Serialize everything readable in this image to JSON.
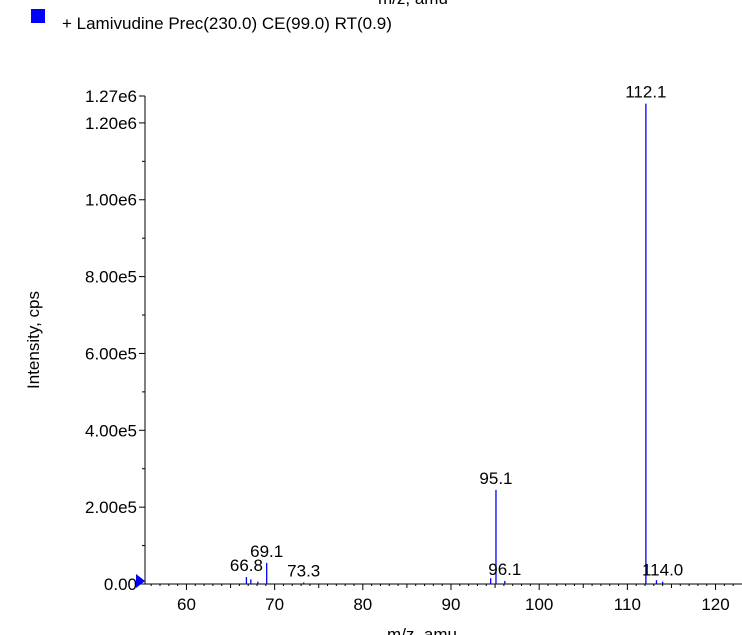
{
  "chart_data": {
    "type": "bar",
    "title": "+ Lamivudine Prec(230.0) CE(99.0) RT(0.9)",
    "top_label": "m/z, amu",
    "xlabel": "m/z, amu",
    "ylabel": "Intensity, cps",
    "xlim": [
      55.3,
      123.0
    ],
    "ylim": [
      0,
      1270000
    ],
    "xticks": [
      60,
      70,
      80,
      90,
      100,
      110,
      120
    ],
    "yticks": [
      {
        "value": 0,
        "label": "0.00"
      },
      {
        "value": 200000,
        "label": "2.00e5"
      },
      {
        "value": 400000,
        "label": "4.00e5"
      },
      {
        "value": 600000,
        "label": "6.00e5"
      },
      {
        "value": 800000,
        "label": "8.00e5"
      },
      {
        "value": 1000000,
        "label": "1.00e6"
      },
      {
        "value": 1200000,
        "label": "1.20e6"
      },
      {
        "value": 1270000,
        "label": "1.27e6"
      }
    ],
    "series": [
      {
        "name": "+ Lamivudine Prec(230.0) CE(99.0) RT(0.9)",
        "color": "#0000ff",
        "peaks": [
          {
            "x": 66.8,
            "y": 18000,
            "label": "66.8"
          },
          {
            "x": 67.3,
            "y": 12000,
            "label": ""
          },
          {
            "x": 68.1,
            "y": 6000,
            "label": ""
          },
          {
            "x": 69.1,
            "y": 55000,
            "label": "69.1"
          },
          {
            "x": 73.3,
            "y": 4000,
            "label": "73.3"
          },
          {
            "x": 94.5,
            "y": 15000,
            "label": ""
          },
          {
            "x": 95.1,
            "y": 245000,
            "label": "95.1"
          },
          {
            "x": 96.1,
            "y": 8000,
            "label": "96.1"
          },
          {
            "x": 112.1,
            "y": 1250000,
            "label": "112.1"
          },
          {
            "x": 113.3,
            "y": 10000,
            "label": ""
          },
          {
            "x": 114.0,
            "y": 6000,
            "label": "114.0"
          }
        ]
      }
    ]
  }
}
